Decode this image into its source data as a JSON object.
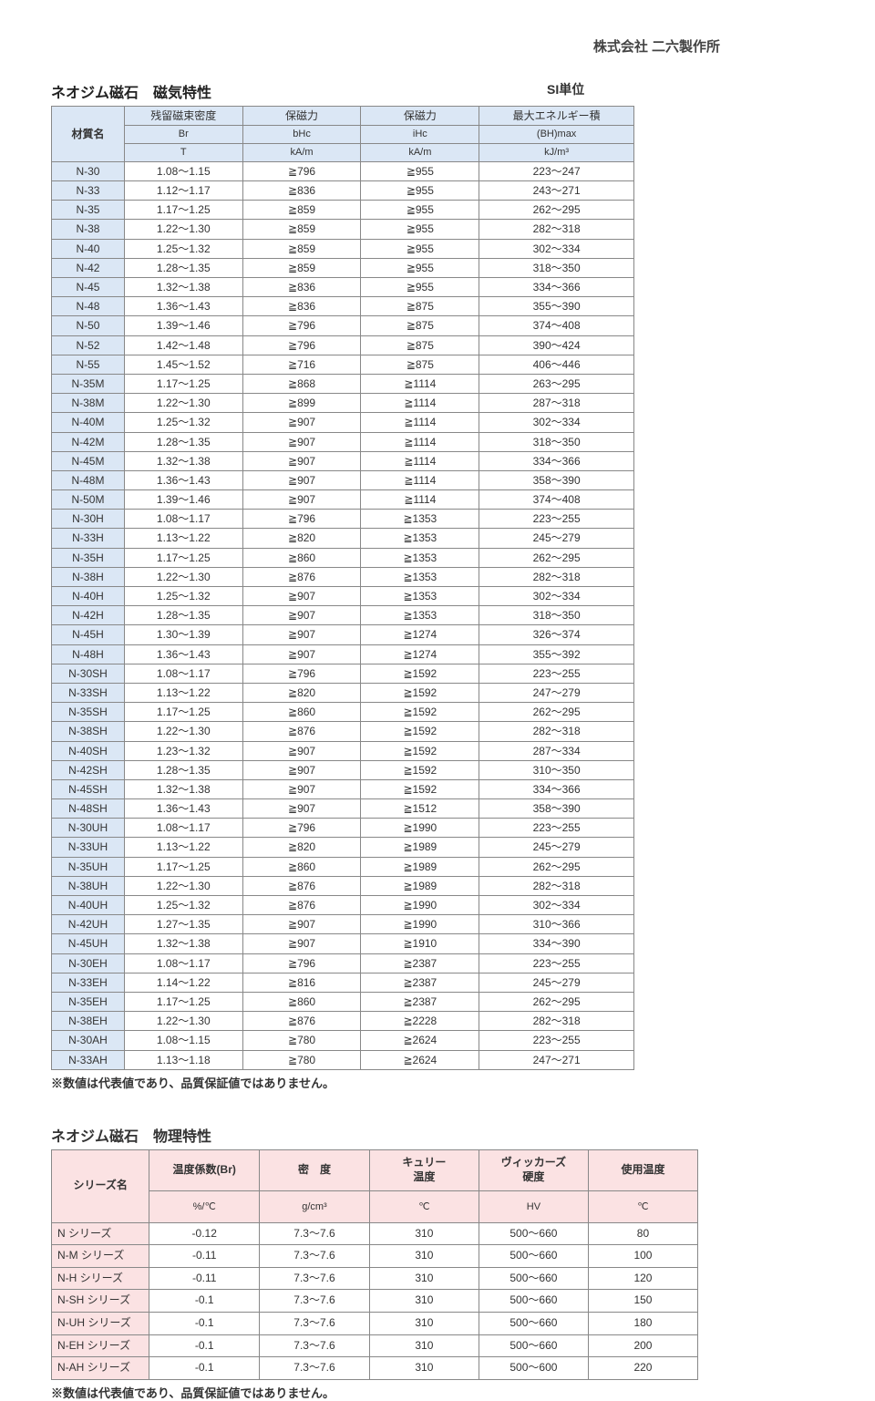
{
  "company": "株式会社 二六製作所",
  "section1": {
    "title": "ネオジム磁石　磁気特性",
    "si_label": "SI単位",
    "header": {
      "material": "材質名",
      "br_title": "残留磁束密度",
      "br_symbol": "Br",
      "br_unit": "T",
      "bhc_title": "保磁力",
      "bhc_symbol": "bHc",
      "bhc_unit": "kA/m",
      "ihc_title": "保磁力",
      "ihc_symbol": "iHc",
      "ihc_unit": "kA/m",
      "bhmax_title": "最大エネルギー積",
      "bhmax_symbol": "(BH)max",
      "bhmax_unit": "kJ/m³"
    },
    "rows": [
      {
        "name": "N-30",
        "br": "1.08～1.15",
        "bhc": "≧796",
        "ihc": "≧955",
        "bhmax": "223～247"
      },
      {
        "name": "N-33",
        "br": "1.12～1.17",
        "bhc": "≧836",
        "ihc": "≧955",
        "bhmax": "243～271"
      },
      {
        "name": "N-35",
        "br": "1.17～1.25",
        "bhc": "≧859",
        "ihc": "≧955",
        "bhmax": "262～295"
      },
      {
        "name": "N-38",
        "br": "1.22～1.30",
        "bhc": "≧859",
        "ihc": "≧955",
        "bhmax": "282～318"
      },
      {
        "name": "N-40",
        "br": "1.25～1.32",
        "bhc": "≧859",
        "ihc": "≧955",
        "bhmax": "302～334"
      },
      {
        "name": "N-42",
        "br": "1.28～1.35",
        "bhc": "≧859",
        "ihc": "≧955",
        "bhmax": "318～350"
      },
      {
        "name": "N-45",
        "br": "1.32～1.38",
        "bhc": "≧836",
        "ihc": "≧955",
        "bhmax": "334～366"
      },
      {
        "name": "N-48",
        "br": "1.36～1.43",
        "bhc": "≧836",
        "ihc": "≧875",
        "bhmax": "355～390"
      },
      {
        "name": "N-50",
        "br": "1.39～1.46",
        "bhc": "≧796",
        "ihc": "≧875",
        "bhmax": "374～408"
      },
      {
        "name": "N-52",
        "br": "1.42～1.48",
        "bhc": "≧796",
        "ihc": "≧875",
        "bhmax": "390～424"
      },
      {
        "name": "N-55",
        "br": "1.45～1.52",
        "bhc": "≧716",
        "ihc": "≧875",
        "bhmax": "406～446"
      },
      {
        "name": "N-35M",
        "br": "1.17～1.25",
        "bhc": "≧868",
        "ihc": "≧1114",
        "bhmax": "263～295"
      },
      {
        "name": "N-38M",
        "br": "1.22～1.30",
        "bhc": "≧899",
        "ihc": "≧1114",
        "bhmax": "287～318"
      },
      {
        "name": "N-40M",
        "br": "1.25～1.32",
        "bhc": "≧907",
        "ihc": "≧1114",
        "bhmax": "302～334"
      },
      {
        "name": "N-42M",
        "br": "1.28～1.35",
        "bhc": "≧907",
        "ihc": "≧1114",
        "bhmax": "318～350"
      },
      {
        "name": "N-45M",
        "br": "1.32～1.38",
        "bhc": "≧907",
        "ihc": "≧1114",
        "bhmax": "334～366"
      },
      {
        "name": "N-48M",
        "br": "1.36～1.43",
        "bhc": "≧907",
        "ihc": "≧1114",
        "bhmax": "358～390"
      },
      {
        "name": "N-50M",
        "br": "1.39～1.46",
        "bhc": "≧907",
        "ihc": "≧1114",
        "bhmax": "374～408"
      },
      {
        "name": "N-30H",
        "br": "1.08～1.17",
        "bhc": "≧796",
        "ihc": "≧1353",
        "bhmax": "223～255"
      },
      {
        "name": "N-33H",
        "br": "1.13～1.22",
        "bhc": "≧820",
        "ihc": "≧1353",
        "bhmax": "245～279"
      },
      {
        "name": "N-35H",
        "br": "1.17～1.25",
        "bhc": "≧860",
        "ihc": "≧1353",
        "bhmax": "262～295"
      },
      {
        "name": "N-38H",
        "br": "1.22～1.30",
        "bhc": "≧876",
        "ihc": "≧1353",
        "bhmax": "282～318"
      },
      {
        "name": "N-40H",
        "br": "1.25～1.32",
        "bhc": "≧907",
        "ihc": "≧1353",
        "bhmax": "302～334"
      },
      {
        "name": "N-42H",
        "br": "1.28～1.35",
        "bhc": "≧907",
        "ihc": "≧1353",
        "bhmax": "318～350"
      },
      {
        "name": "N-45H",
        "br": "1.30～1.39",
        "bhc": "≧907",
        "ihc": "≧1274",
        "bhmax": "326～374"
      },
      {
        "name": "N-48H",
        "br": "1.36～1.43",
        "bhc": "≧907",
        "ihc": "≧1274",
        "bhmax": "355～392"
      },
      {
        "name": "N-30SH",
        "br": "1.08～1.17",
        "bhc": "≧796",
        "ihc": "≧1592",
        "bhmax": "223～255"
      },
      {
        "name": "N-33SH",
        "br": "1.13～1.22",
        "bhc": "≧820",
        "ihc": "≧1592",
        "bhmax": "247～279"
      },
      {
        "name": "N-35SH",
        "br": "1.17～1.25",
        "bhc": "≧860",
        "ihc": "≧1592",
        "bhmax": "262～295"
      },
      {
        "name": "N-38SH",
        "br": "1.22～1.30",
        "bhc": "≧876",
        "ihc": "≧1592",
        "bhmax": "282～318"
      },
      {
        "name": "N-40SH",
        "br": "1.23～1.32",
        "bhc": "≧907",
        "ihc": "≧1592",
        "bhmax": "287～334"
      },
      {
        "name": "N-42SH",
        "br": "1.28～1.35",
        "bhc": "≧907",
        "ihc": "≧1592",
        "bhmax": "310～350"
      },
      {
        "name": "N-45SH",
        "br": "1.32～1.38",
        "bhc": "≧907",
        "ihc": "≧1592",
        "bhmax": "334～366"
      },
      {
        "name": "N-48SH",
        "br": "1.36～1.43",
        "bhc": "≧907",
        "ihc": "≧1512",
        "bhmax": "358～390"
      },
      {
        "name": "N-30UH",
        "br": "1.08～1.17",
        "bhc": "≧796",
        "ihc": "≧1990",
        "bhmax": "223～255"
      },
      {
        "name": "N-33UH",
        "br": "1.13～1.22",
        "bhc": "≧820",
        "ihc": "≧1989",
        "bhmax": "245～279"
      },
      {
        "name": "N-35UH",
        "br": "1.17～1.25",
        "bhc": "≧860",
        "ihc": "≧1989",
        "bhmax": "262～295"
      },
      {
        "name": "N-38UH",
        "br": "1.22～1.30",
        "bhc": "≧876",
        "ihc": "≧1989",
        "bhmax": "282～318"
      },
      {
        "name": "N-40UH",
        "br": "1.25～1.32",
        "bhc": "≧876",
        "ihc": "≧1990",
        "bhmax": "302～334"
      },
      {
        "name": "N-42UH",
        "br": "1.27～1.35",
        "bhc": "≧907",
        "ihc": "≧1990",
        "bhmax": "310～366"
      },
      {
        "name": "N-45UH",
        "br": "1.32～1.38",
        "bhc": "≧907",
        "ihc": "≧1910",
        "bhmax": "334～390"
      },
      {
        "name": "N-30EH",
        "br": "1.08～1.17",
        "bhc": "≧796",
        "ihc": "≧2387",
        "bhmax": "223～255"
      },
      {
        "name": "N-33EH",
        "br": "1.14～1.22",
        "bhc": "≧816",
        "ihc": "≧2387",
        "bhmax": "245～279"
      },
      {
        "name": "N-35EH",
        "br": "1.17～1.25",
        "bhc": "≧860",
        "ihc": "≧2387",
        "bhmax": "262～295"
      },
      {
        "name": "N-38EH",
        "br": "1.22～1.30",
        "bhc": "≧876",
        "ihc": "≧2228",
        "bhmax": "282～318"
      },
      {
        "name": "N-30AH",
        "br": "1.08～1.15",
        "bhc": "≧780",
        "ihc": "≧2624",
        "bhmax": "223～255"
      },
      {
        "name": "N-33AH",
        "br": "1.13～1.18",
        "bhc": "≧780",
        "ihc": "≧2624",
        "bhmax": "247～271"
      }
    ],
    "footnote": "※数値は代表値であり、品質保証値ではありません。"
  },
  "section2": {
    "title": "ネオジム磁石　物理特性",
    "header": {
      "series": "シリーズ名",
      "tempco": "温度係数(Br)",
      "tempco_unit": "%/℃",
      "density": "密　度",
      "density_unit": "g/cm³",
      "curie": "キュリー\n温度",
      "curie_unit": "℃",
      "vickers": "ヴィッカーズ\n硬度",
      "vickers_unit": "HV",
      "usetemp": "使用温度",
      "usetemp_unit": "℃"
    },
    "rows": [
      {
        "series": "N シリーズ",
        "tempco": "-0.12",
        "density": "7.3～7.6",
        "curie": "310",
        "vickers": "500～660",
        "usetemp": "80"
      },
      {
        "series": "N-M シリーズ",
        "tempco": "-0.11",
        "density": "7.3～7.6",
        "curie": "310",
        "vickers": "500～660",
        "usetemp": "100"
      },
      {
        "series": "N-H シリーズ",
        "tempco": "-0.11",
        "density": "7.3～7.6",
        "curie": "310",
        "vickers": "500～660",
        "usetemp": "120"
      },
      {
        "series": "N-SH シリーズ",
        "tempco": "-0.1",
        "density": "7.3～7.6",
        "curie": "310",
        "vickers": "500～660",
        "usetemp": "150"
      },
      {
        "series": "N-UH シリーズ",
        "tempco": "-0.1",
        "density": "7.3～7.6",
        "curie": "310",
        "vickers": "500～660",
        "usetemp": "180"
      },
      {
        "series": "N-EH シリーズ",
        "tempco": "-0.1",
        "density": "7.3～7.6",
        "curie": "310",
        "vickers": "500～660",
        "usetemp": "200"
      },
      {
        "series": "N-AH シリーズ",
        "tempco": "-0.1",
        "density": "7.3～7.6",
        "curie": "310",
        "vickers": "500～600",
        "usetemp": "220"
      }
    ],
    "footnote": "※数値は代表値であり、品質保証値ではありません。"
  },
  "colors": {
    "header_blue": "#dbe7f5",
    "header_pink": "#fbe2e3",
    "border": "#888888",
    "text": "#333333"
  }
}
